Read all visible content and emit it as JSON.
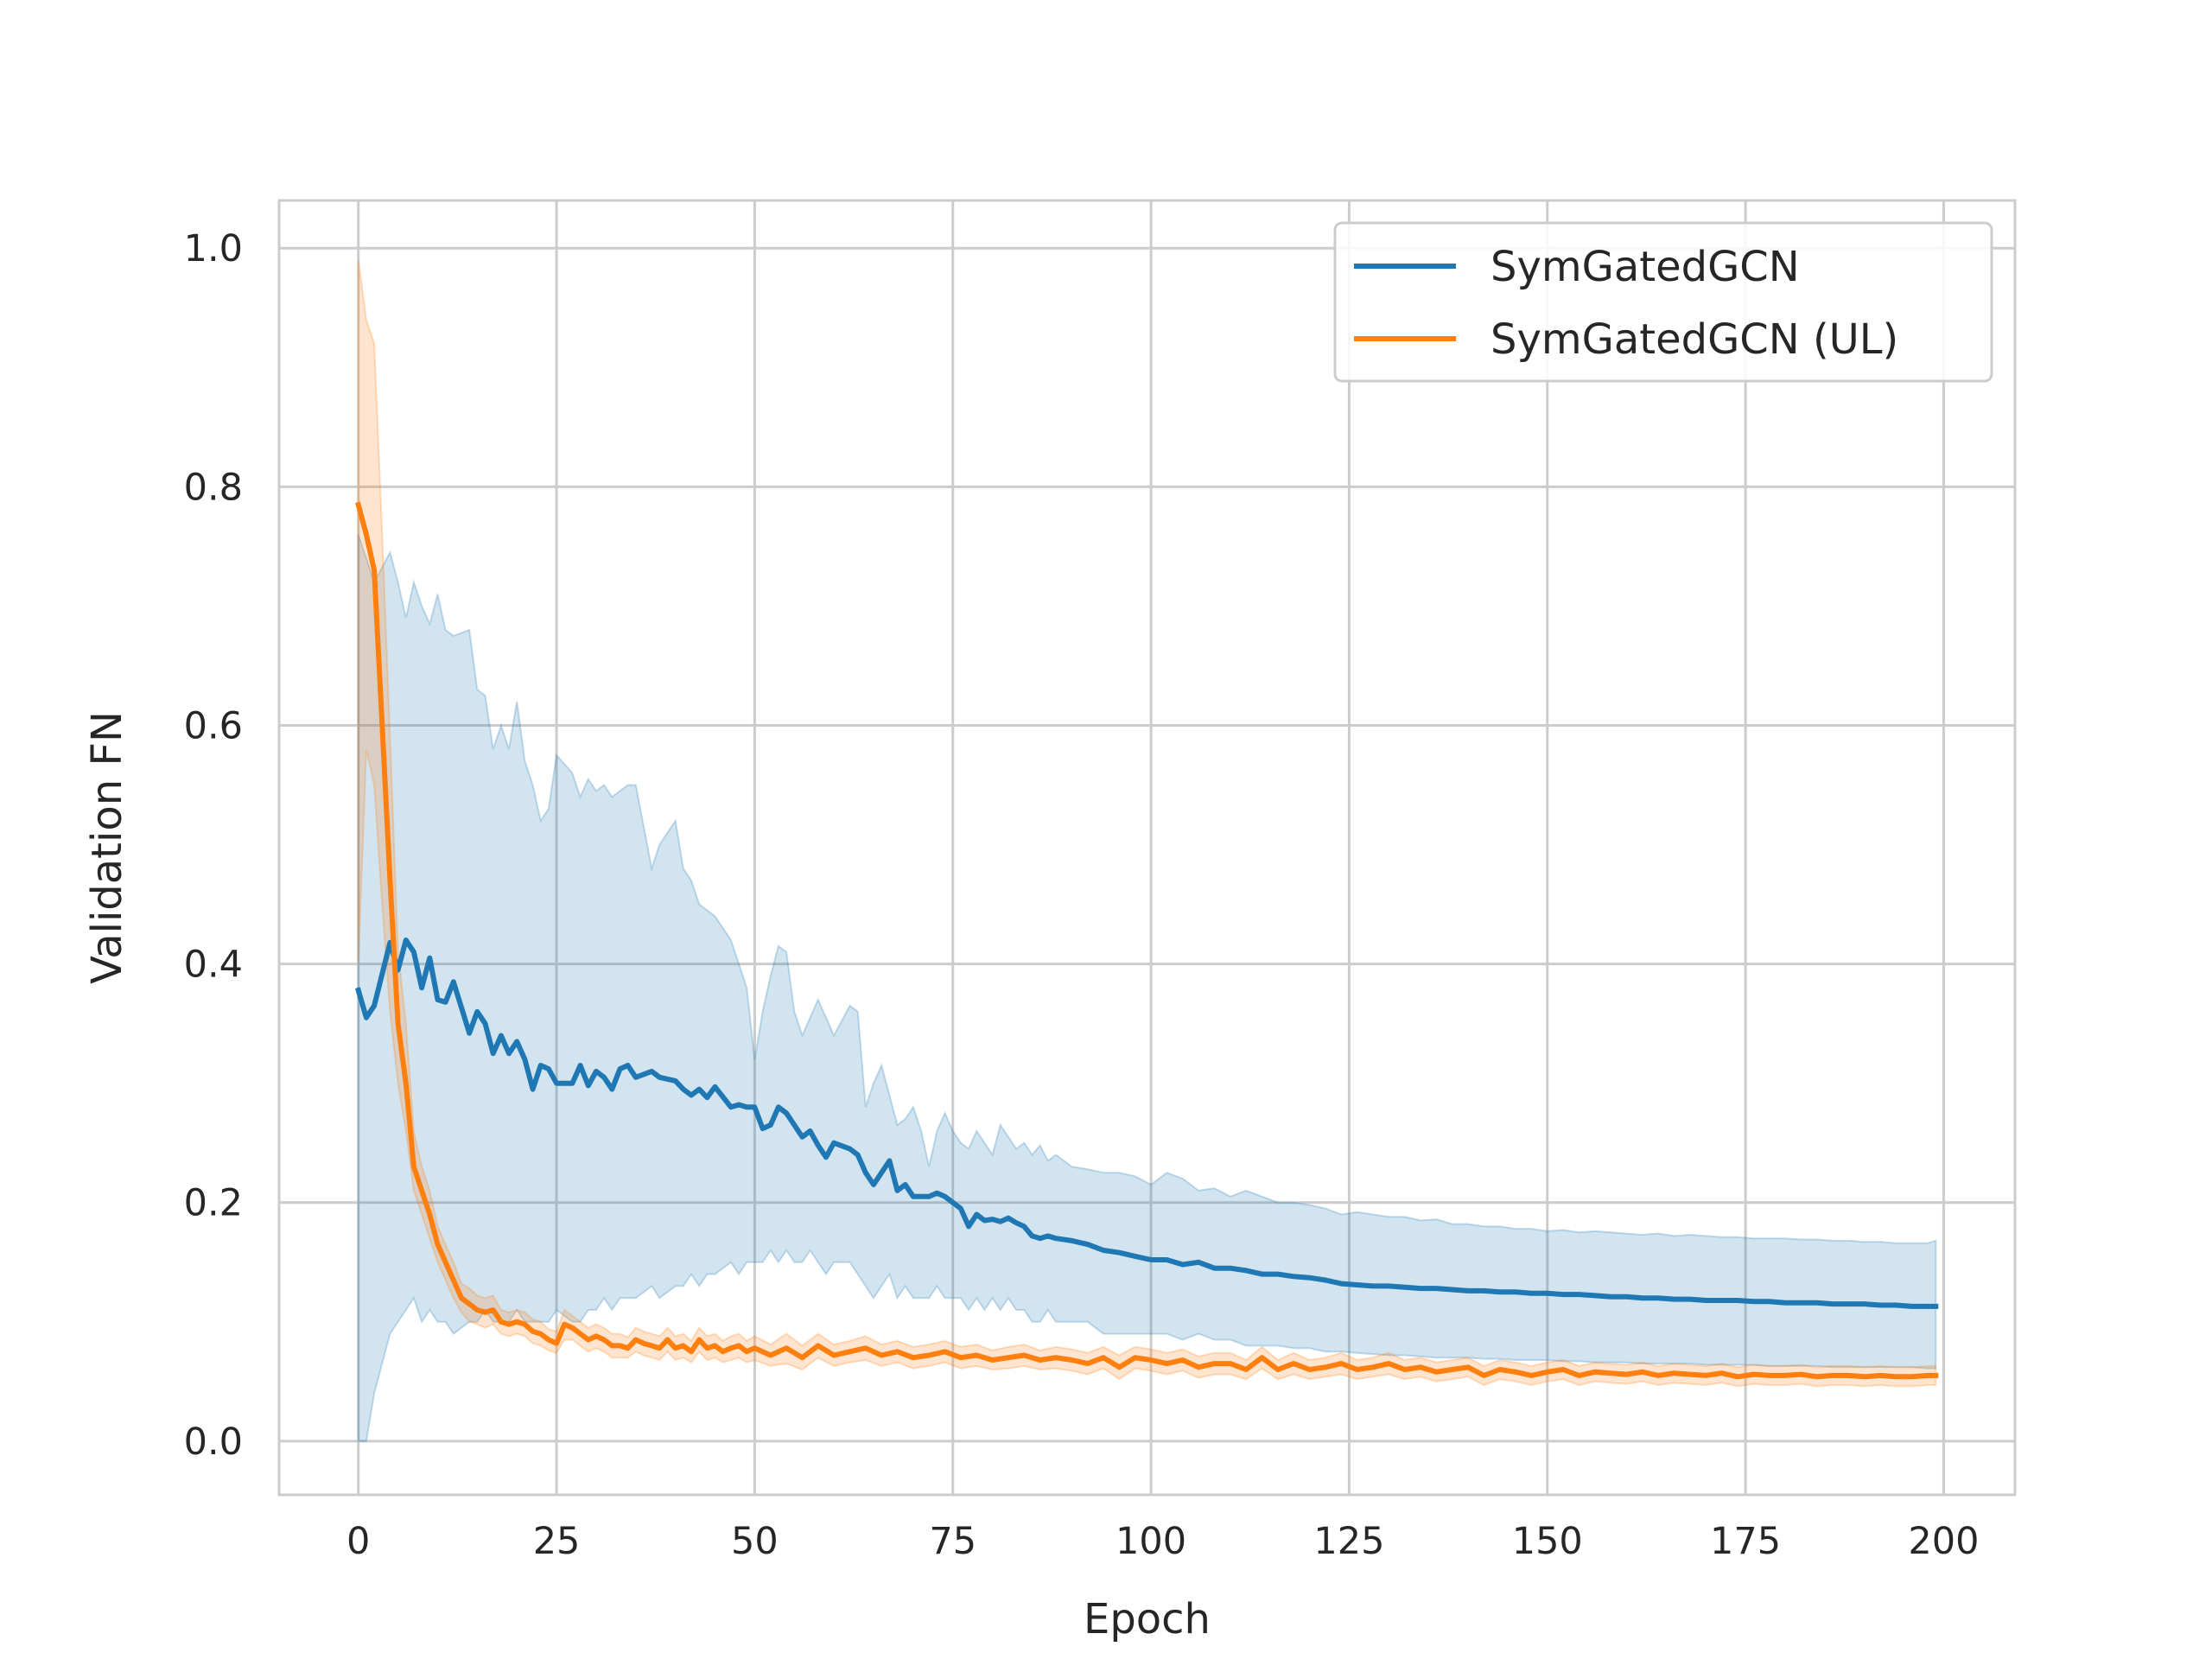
{
  "chart_data": {
    "type": "line",
    "title": "",
    "xlabel": "Epoch",
    "ylabel": "Validation FN",
    "xlim": [
      -10,
      209
    ],
    "ylim": [
      -0.045,
      1.04
    ],
    "xticks": [
      0,
      25,
      50,
      75,
      100,
      125,
      150,
      175,
      200
    ],
    "yticks": [
      0.0,
      0.2,
      0.4,
      0.6,
      0.8,
      1.0
    ],
    "xtick_labels": [
      "0",
      "25",
      "50",
      "75",
      "100",
      "125",
      "150",
      "175",
      "200"
    ],
    "ytick_labels": [
      "0.0",
      "0.2",
      "0.4",
      "0.6",
      "0.8",
      "1.0"
    ],
    "grid": true,
    "legend_position": "top-right",
    "series": [
      {
        "name": "SymGatedGCN",
        "color": "#1f77b4",
        "x": [
          0,
          1,
          2,
          4,
          5,
          6,
          7,
          8,
          9,
          10,
          11,
          12,
          14,
          15,
          16,
          17,
          18,
          19,
          20,
          21,
          22,
          23,
          24,
          25,
          27,
          28,
          29,
          30,
          31,
          32,
          33,
          34,
          35,
          37,
          38,
          40,
          41,
          42,
          43,
          44,
          45,
          47,
          48,
          49,
          50,
          51,
          52,
          53,
          54,
          55,
          56,
          57,
          58,
          59,
          60,
          62,
          63,
          64,
          65,
          66,
          67,
          68,
          69,
          70,
          71,
          72,
          73,
          74,
          75,
          76,
          77,
          78,
          79,
          80,
          81,
          82,
          83,
          84,
          85,
          86,
          87,
          88,
          90,
          92,
          94,
          96,
          98,
          100,
          102,
          104,
          106,
          108,
          110,
          112,
          114,
          116,
          118,
          120,
          122,
          124,
          126,
          128,
          130,
          132,
          134,
          136,
          138,
          140,
          142,
          144,
          146,
          148,
          150,
          152,
          154,
          156,
          158,
          160,
          162,
          164,
          166,
          168,
          170,
          172,
          174,
          176,
          178,
          180,
          182,
          184,
          186,
          188,
          190,
          192,
          194,
          196,
          198,
          199
        ],
        "values": [
          0.378,
          0.355,
          0.365,
          0.418,
          0.395,
          0.42,
          0.41,
          0.38,
          0.405,
          0.37,
          0.368,
          0.385,
          0.342,
          0.36,
          0.35,
          0.325,
          0.34,
          0.325,
          0.335,
          0.32,
          0.295,
          0.315,
          0.312,
          0.3,
          0.3,
          0.315,
          0.298,
          0.31,
          0.305,
          0.295,
          0.312,
          0.315,
          0.305,
          0.31,
          0.305,
          0.302,
          0.295,
          0.29,
          0.295,
          0.288,
          0.297,
          0.28,
          0.282,
          0.28,
          0.28,
          0.262,
          0.265,
          0.28,
          0.275,
          0.265,
          0.255,
          0.26,
          0.248,
          0.238,
          0.25,
          0.245,
          0.24,
          0.225,
          0.215,
          0.225,
          0.235,
          0.21,
          0.215,
          0.205,
          0.205,
          0.205,
          0.208,
          0.205,
          0.2,
          0.195,
          0.18,
          0.19,
          0.185,
          0.186,
          0.184,
          0.187,
          0.183,
          0.18,
          0.172,
          0.17,
          0.172,
          0.17,
          0.168,
          0.165,
          0.16,
          0.158,
          0.155,
          0.152,
          0.152,
          0.148,
          0.15,
          0.145,
          0.145,
          0.143,
          0.14,
          0.14,
          0.138,
          0.137,
          0.135,
          0.132,
          0.131,
          0.13,
          0.13,
          0.129,
          0.128,
          0.128,
          0.127,
          0.126,
          0.126,
          0.125,
          0.125,
          0.124,
          0.124,
          0.123,
          0.123,
          0.122,
          0.121,
          0.121,
          0.12,
          0.12,
          0.119,
          0.119,
          0.118,
          0.118,
          0.118,
          0.117,
          0.117,
          0.116,
          0.116,
          0.116,
          0.115,
          0.115,
          0.115,
          0.114,
          0.114,
          0.113,
          0.113,
          0.113
        ],
        "band_lower": [
          0.0,
          0.0,
          0.04,
          0.09,
          0.1,
          0.11,
          0.12,
          0.1,
          0.11,
          0.1,
          0.1,
          0.09,
          0.1,
          0.1,
          0.11,
          0.1,
          0.1,
          0.1,
          0.11,
          0.1,
          0.1,
          0.1,
          0.1,
          0.11,
          0.1,
          0.1,
          0.11,
          0.11,
          0.12,
          0.11,
          0.12,
          0.12,
          0.12,
          0.13,
          0.12,
          0.13,
          0.13,
          0.14,
          0.13,
          0.14,
          0.14,
          0.15,
          0.14,
          0.15,
          0.15,
          0.15,
          0.16,
          0.15,
          0.16,
          0.15,
          0.15,
          0.16,
          0.15,
          0.14,
          0.15,
          0.15,
          0.14,
          0.13,
          0.12,
          0.13,
          0.14,
          0.12,
          0.13,
          0.12,
          0.12,
          0.12,
          0.13,
          0.12,
          0.12,
          0.12,
          0.11,
          0.12,
          0.11,
          0.12,
          0.11,
          0.12,
          0.11,
          0.11,
          0.1,
          0.1,
          0.11,
          0.1,
          0.1,
          0.1,
          0.09,
          0.09,
          0.09,
          0.09,
          0.09,
          0.085,
          0.09,
          0.085,
          0.085,
          0.08,
          0.08,
          0.08,
          0.078,
          0.078,
          0.075,
          0.075,
          0.074,
          0.073,
          0.072,
          0.072,
          0.071,
          0.07,
          0.07,
          0.07,
          0.069,
          0.069,
          0.068,
          0.068,
          0.068,
          0.067,
          0.067,
          0.066,
          0.066,
          0.066,
          0.065,
          0.065,
          0.065,
          0.065,
          0.064,
          0.064,
          0.064,
          0.064,
          0.063,
          0.063,
          0.063,
          0.063,
          0.062,
          0.062,
          0.062,
          0.062,
          0.062,
          0.062,
          0.061,
          0.061
        ],
        "band_upper": [
          0.76,
          0.74,
          0.72,
          0.745,
          0.72,
          0.69,
          0.72,
          0.7,
          0.685,
          0.71,
          0.68,
          0.675,
          0.68,
          0.63,
          0.625,
          0.58,
          0.6,
          0.58,
          0.62,
          0.57,
          0.55,
          0.52,
          0.53,
          0.575,
          0.56,
          0.54,
          0.555,
          0.545,
          0.55,
          0.54,
          0.545,
          0.55,
          0.55,
          0.48,
          0.5,
          0.52,
          0.48,
          0.47,
          0.45,
          0.445,
          0.44,
          0.42,
          0.4,
          0.38,
          0.32,
          0.36,
          0.39,
          0.415,
          0.41,
          0.36,
          0.34,
          0.355,
          0.37,
          0.355,
          0.34,
          0.365,
          0.36,
          0.28,
          0.3,
          0.315,
          0.29,
          0.265,
          0.27,
          0.28,
          0.26,
          0.23,
          0.26,
          0.275,
          0.26,
          0.25,
          0.245,
          0.26,
          0.25,
          0.24,
          0.265,
          0.255,
          0.245,
          0.25,
          0.24,
          0.248,
          0.235,
          0.24,
          0.23,
          0.228,
          0.225,
          0.225,
          0.222,
          0.215,
          0.225,
          0.22,
          0.21,
          0.212,
          0.205,
          0.21,
          0.205,
          0.2,
          0.2,
          0.198,
          0.195,
          0.19,
          0.192,
          0.19,
          0.188,
          0.188,
          0.185,
          0.186,
          0.182,
          0.182,
          0.18,
          0.18,
          0.178,
          0.178,
          0.176,
          0.177,
          0.175,
          0.176,
          0.175,
          0.174,
          0.173,
          0.174,
          0.172,
          0.173,
          0.172,
          0.171,
          0.171,
          0.17,
          0.17,
          0.17,
          0.169,
          0.169,
          0.168,
          0.168,
          0.167,
          0.167,
          0.166,
          0.166,
          0.166,
          0.168
        ]
      },
      {
        "name": "SymGatedGCN (UL)",
        "color": "#ff7f0e",
        "x": [
          0,
          1,
          2,
          3,
          4,
          5,
          6,
          7,
          8,
          9,
          10,
          11,
          12,
          13,
          14,
          15,
          16,
          17,
          18,
          19,
          20,
          21,
          22,
          23,
          24,
          25,
          26,
          27,
          28,
          29,
          30,
          31,
          32,
          33,
          34,
          35,
          36,
          37,
          38,
          39,
          40,
          41,
          42,
          43,
          44,
          45,
          46,
          47,
          48,
          49,
          50,
          52,
          54,
          56,
          58,
          60,
          62,
          64,
          66,
          68,
          70,
          72,
          74,
          76,
          78,
          80,
          82,
          84,
          86,
          88,
          90,
          92,
          94,
          96,
          98,
          100,
          102,
          104,
          106,
          108,
          110,
          112,
          114,
          116,
          118,
          120,
          122,
          124,
          126,
          128,
          130,
          132,
          134,
          136,
          138,
          140,
          142,
          144,
          146,
          148,
          150,
          152,
          154,
          156,
          158,
          160,
          162,
          164,
          166,
          168,
          170,
          172,
          174,
          176,
          178,
          180,
          182,
          184,
          186,
          188,
          190,
          192,
          194,
          196,
          198,
          199
        ],
        "values": [
          0.785,
          0.76,
          0.73,
          0.6,
          0.47,
          0.35,
          0.3,
          0.23,
          0.21,
          0.19,
          0.165,
          0.15,
          0.135,
          0.12,
          0.115,
          0.11,
          0.108,
          0.11,
          0.1,
          0.098,
          0.1,
          0.098,
          0.092,
          0.09,
          0.085,
          0.082,
          0.098,
          0.095,
          0.09,
          0.085,
          0.088,
          0.085,
          0.08,
          0.08,
          0.078,
          0.085,
          0.082,
          0.08,
          0.078,
          0.085,
          0.078,
          0.08,
          0.075,
          0.085,
          0.078,
          0.08,
          0.075,
          0.078,
          0.08,
          0.075,
          0.078,
          0.072,
          0.078,
          0.07,
          0.08,
          0.072,
          0.075,
          0.078,
          0.072,
          0.075,
          0.07,
          0.072,
          0.075,
          0.07,
          0.072,
          0.068,
          0.07,
          0.072,
          0.068,
          0.07,
          0.068,
          0.065,
          0.07,
          0.062,
          0.07,
          0.068,
          0.065,
          0.068,
          0.062,
          0.065,
          0.065,
          0.06,
          0.07,
          0.06,
          0.065,
          0.06,
          0.062,
          0.065,
          0.06,
          0.062,
          0.065,
          0.06,
          0.062,
          0.058,
          0.06,
          0.062,
          0.055,
          0.06,
          0.058,
          0.055,
          0.058,
          0.06,
          0.055,
          0.058,
          0.057,
          0.056,
          0.058,
          0.055,
          0.057,
          0.056,
          0.055,
          0.057,
          0.054,
          0.056,
          0.055,
          0.055,
          0.056,
          0.054,
          0.055,
          0.055,
          0.054,
          0.055,
          0.054,
          0.054,
          0.055,
          0.055
        ],
        "band_lower": [
          0.4,
          0.58,
          0.55,
          0.45,
          0.36,
          0.3,
          0.26,
          0.21,
          0.19,
          0.17,
          0.15,
          0.135,
          0.12,
          0.108,
          0.1,
          0.098,
          0.095,
          0.098,
          0.09,
          0.088,
          0.09,
          0.088,
          0.082,
          0.08,
          0.076,
          0.074,
          0.085,
          0.085,
          0.08,
          0.075,
          0.078,
          0.075,
          0.07,
          0.07,
          0.07,
          0.075,
          0.072,
          0.07,
          0.068,
          0.075,
          0.068,
          0.07,
          0.066,
          0.075,
          0.068,
          0.07,
          0.066,
          0.068,
          0.07,
          0.066,
          0.068,
          0.063,
          0.065,
          0.06,
          0.07,
          0.063,
          0.066,
          0.068,
          0.063,
          0.066,
          0.061,
          0.063,
          0.066,
          0.061,
          0.063,
          0.06,
          0.061,
          0.063,
          0.06,
          0.061,
          0.059,
          0.056,
          0.061,
          0.052,
          0.061,
          0.059,
          0.056,
          0.059,
          0.053,
          0.056,
          0.056,
          0.052,
          0.061,
          0.052,
          0.056,
          0.052,
          0.054,
          0.056,
          0.052,
          0.054,
          0.056,
          0.052,
          0.054,
          0.05,
          0.052,
          0.054,
          0.047,
          0.052,
          0.05,
          0.047,
          0.05,
          0.052,
          0.047,
          0.05,
          0.049,
          0.048,
          0.05,
          0.047,
          0.049,
          0.048,
          0.047,
          0.049,
          0.046,
          0.048,
          0.047,
          0.047,
          0.048,
          0.046,
          0.047,
          0.047,
          0.046,
          0.047,
          0.046,
          0.046,
          0.047,
          0.047
        ],
        "band_upper": [
          0.99,
          0.94,
          0.92,
          0.76,
          0.59,
          0.41,
          0.35,
          0.26,
          0.23,
          0.21,
          0.18,
          0.165,
          0.15,
          0.132,
          0.128,
          0.122,
          0.12,
          0.122,
          0.11,
          0.108,
          0.11,
          0.108,
          0.102,
          0.1,
          0.094,
          0.092,
          0.11,
          0.105,
          0.1,
          0.095,
          0.098,
          0.095,
          0.09,
          0.09,
          0.087,
          0.095,
          0.092,
          0.09,
          0.088,
          0.095,
          0.088,
          0.09,
          0.084,
          0.095,
          0.088,
          0.09,
          0.084,
          0.088,
          0.09,
          0.084,
          0.088,
          0.081,
          0.09,
          0.08,
          0.09,
          0.081,
          0.084,
          0.088,
          0.081,
          0.084,
          0.079,
          0.081,
          0.084,
          0.079,
          0.081,
          0.076,
          0.079,
          0.081,
          0.076,
          0.079,
          0.077,
          0.074,
          0.079,
          0.072,
          0.079,
          0.077,
          0.074,
          0.077,
          0.071,
          0.074,
          0.074,
          0.068,
          0.079,
          0.068,
          0.074,
          0.068,
          0.07,
          0.074,
          0.068,
          0.07,
          0.074,
          0.068,
          0.07,
          0.066,
          0.068,
          0.07,
          0.063,
          0.068,
          0.066,
          0.063,
          0.066,
          0.068,
          0.063,
          0.066,
          0.065,
          0.064,
          0.066,
          0.063,
          0.065,
          0.064,
          0.063,
          0.065,
          0.062,
          0.064,
          0.063,
          0.063,
          0.064,
          0.062,
          0.063,
          0.063,
          0.062,
          0.063,
          0.062,
          0.062,
          0.063,
          0.063
        ]
      }
    ]
  }
}
